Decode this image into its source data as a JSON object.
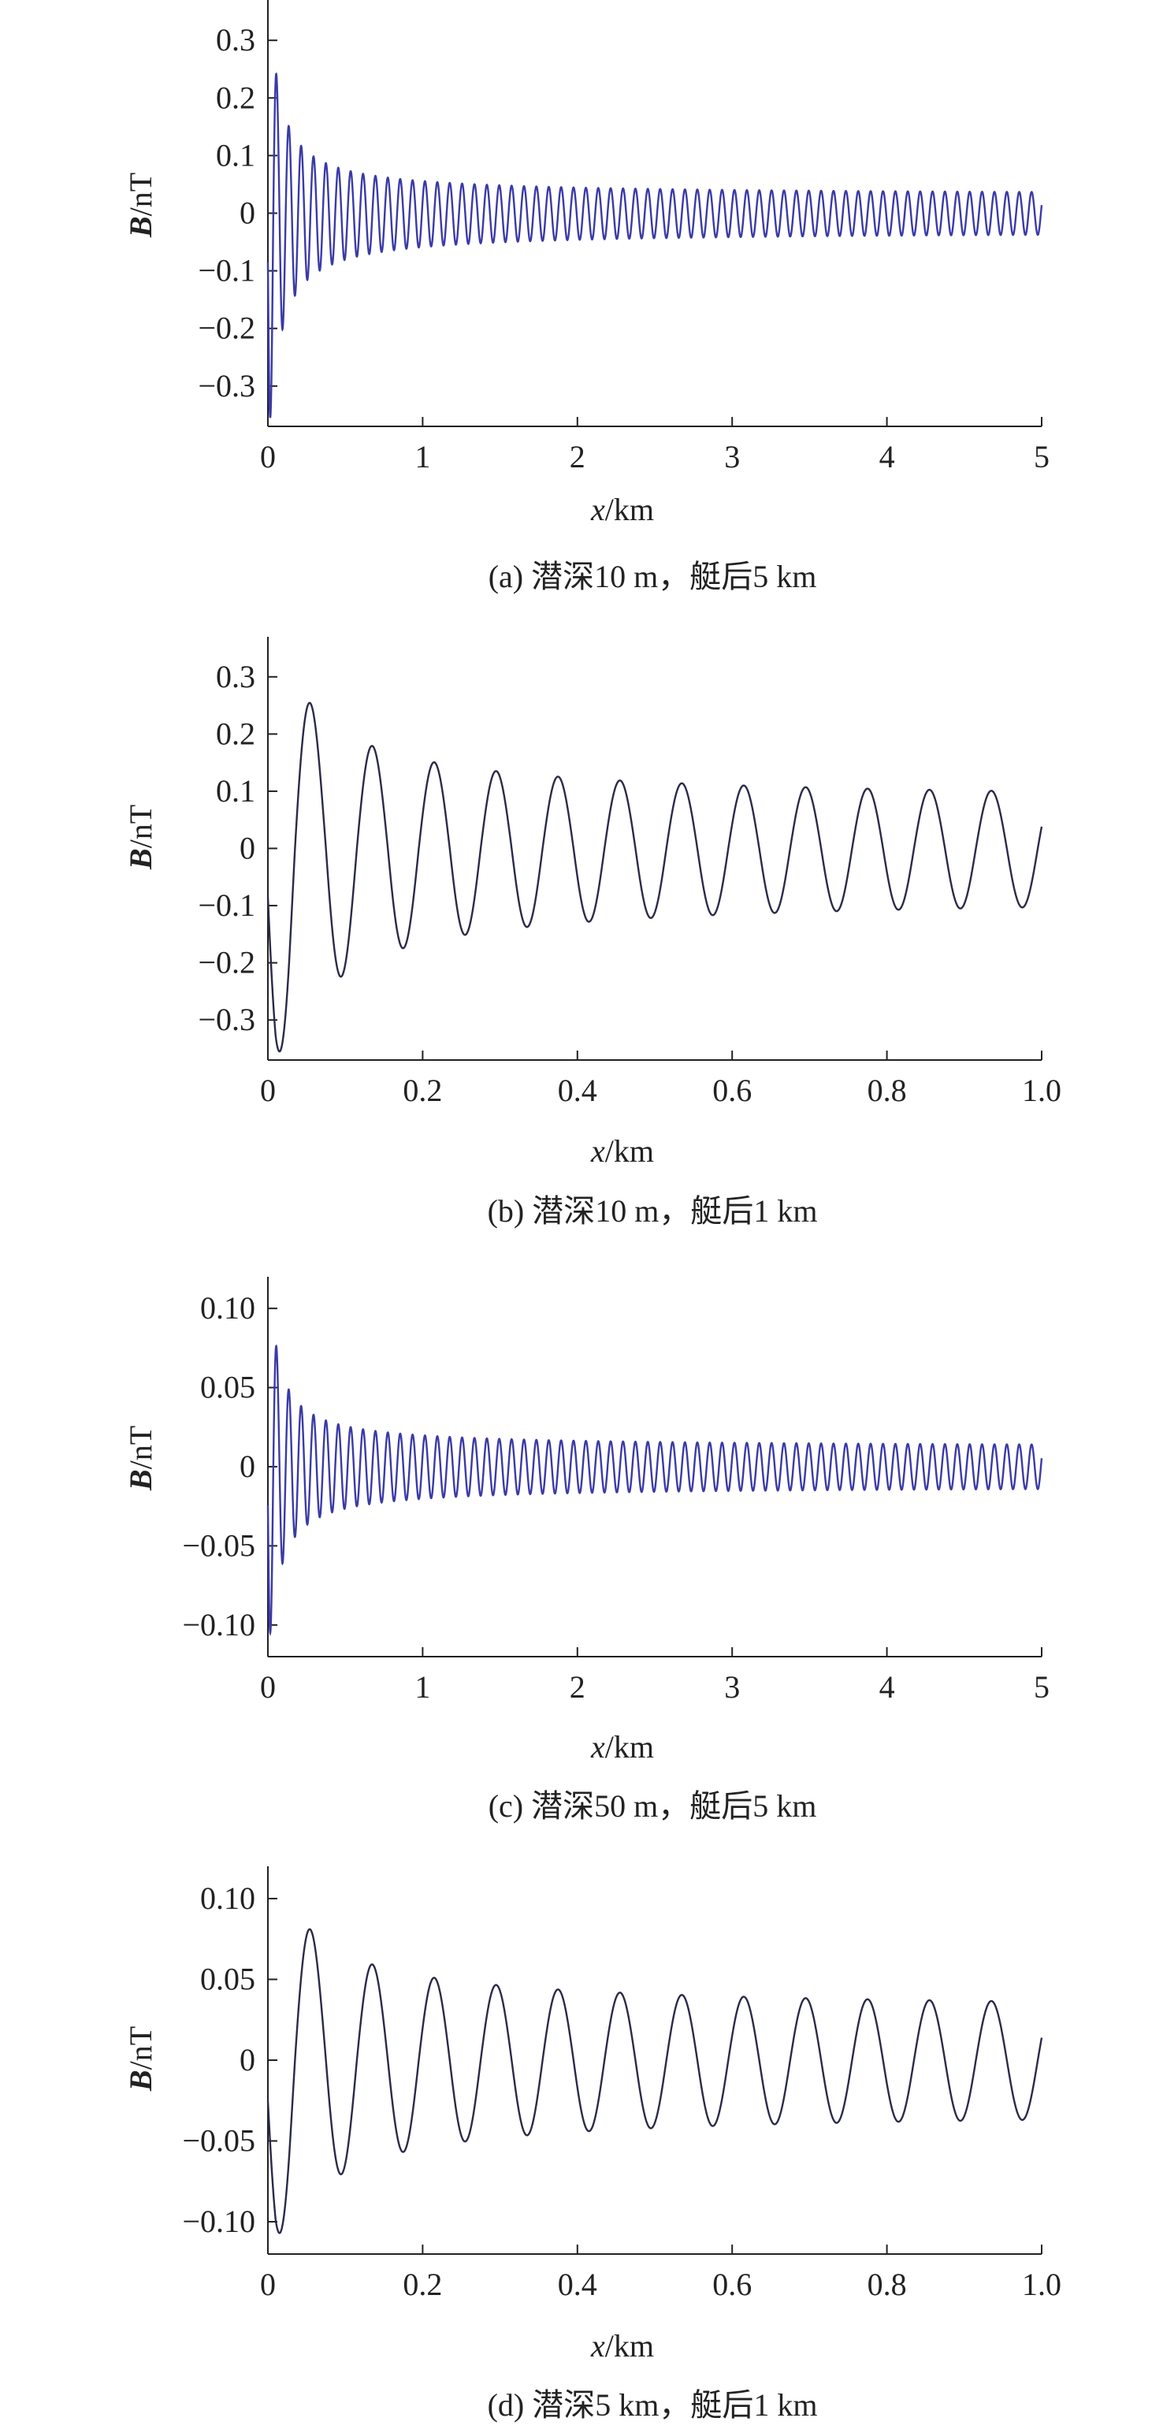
{
  "chart_data": [
    {
      "type": "line",
      "caption": "(a) 潜深10 m，艇后5 km",
      "xlabel": "x/km",
      "xlabel_var": "x",
      "xlabel_unit": "/km",
      "ylabel": "B/nT",
      "ylabel_var": "B",
      "ylabel_unit": "/nT",
      "xlim": [
        0,
        5
      ],
      "ylim": [
        -0.37,
        0.37
      ],
      "xticks": [
        0,
        1,
        2,
        3,
        4,
        5
      ],
      "xtick_labels": [
        "0",
        "1",
        "2",
        "3",
        "4",
        "5"
      ],
      "yticks": [
        0.3,
        0.2,
        0.1,
        0,
        -0.1,
        -0.2,
        -0.3
      ],
      "ytick_labels": [
        "0.3",
        "0.2",
        "0.1",
        "0",
        "−0.1",
        "−0.2",
        "−0.3"
      ],
      "grid": false,
      "signal": {
        "period_km": 0.08,
        "phase_offset_km": -0.005,
        "offset": 0.0,
        "peak_max": 0.32,
        "trough_min": -0.355,
        "amp_far": 0.03,
        "end_value": -0.03
      },
      "colors": {
        "line": "#3a3aa8",
        "axis": "#222222"
      }
    },
    {
      "type": "line",
      "caption": "(b) 潜深10 m，艇后1 km",
      "xlabel": "x/km",
      "xlabel_var": "x",
      "xlabel_unit": "/km",
      "ylabel": "B/nT",
      "ylabel_var": "B",
      "ylabel_unit": "/nT",
      "xlim": [
        0,
        1.0
      ],
      "ylim": [
        -0.37,
        0.37
      ],
      "xticks": [
        0,
        0.2,
        0.4,
        0.6,
        0.8,
        1.0
      ],
      "xtick_labels": [
        "0",
        "0.2",
        "0.4",
        "0.6",
        "0.8",
        "1.0"
      ],
      "yticks": [
        0.3,
        0.2,
        0.1,
        0,
        -0.1,
        -0.2,
        -0.3
      ],
      "ytick_labels": [
        "0.3",
        "0.2",
        "0.1",
        "0",
        "−0.1",
        "−0.2",
        "−0.3"
      ],
      "grid": false,
      "signal": {
        "period_km": 0.08,
        "phase_offset_km": -0.005,
        "offset": 0.0,
        "peak_max": 0.32,
        "trough_min": -0.355,
        "amp_far": 0.078,
        "end_value": 0.0
      },
      "colors": {
        "line": "#2a2a4a",
        "axis": "#222222"
      }
    },
    {
      "type": "line",
      "caption": "(c) 潜深50 m，艇后5 km",
      "xlabel": "x/km",
      "xlabel_var": "x",
      "xlabel_unit": "/km",
      "ylabel": "B/nT",
      "ylabel_var": "B",
      "ylabel_unit": "/nT",
      "xlim": [
        0,
        5
      ],
      "ylim": [
        -0.12,
        0.12
      ],
      "xticks": [
        0,
        1,
        2,
        3,
        4,
        5
      ],
      "xtick_labels": [
        "0",
        "1",
        "2",
        "3",
        "4",
        "5"
      ],
      "yticks": [
        0.1,
        0.05,
        0,
        -0.05,
        -0.1
      ],
      "ytick_labels": [
        "0.10",
        "0.05",
        "0",
        "−0.05",
        "−0.10"
      ],
      "grid": false,
      "signal": {
        "period_km": 0.08,
        "phase_offset_km": -0.005,
        "offset": 0.0,
        "peak_max": 0.1,
        "trough_min": -0.105,
        "amp_far": 0.012,
        "end_value": -0.01
      },
      "colors": {
        "line": "#3a3aa8",
        "axis": "#222222"
      }
    },
    {
      "type": "line",
      "caption": "(d) 潜深5 km，艇后1 km",
      "xlabel": "x/km",
      "xlabel_var": "x",
      "xlabel_unit": "/km",
      "ylabel": "B/nT",
      "ylabel_var": "B",
      "ylabel_unit": "/nT",
      "xlim": [
        0,
        1.0
      ],
      "ylim": [
        -0.12,
        0.12
      ],
      "xticks": [
        0,
        0.2,
        0.4,
        0.6,
        0.8,
        1.0
      ],
      "xtick_labels": [
        "0",
        "0.2",
        "0.4",
        "0.6",
        "0.8",
        "1.0"
      ],
      "yticks": [
        0.1,
        0.05,
        0,
        -0.05,
        -0.1
      ],
      "ytick_labels": [
        "0.10",
        "0.05",
        "0",
        "−0.05",
        "−0.10"
      ],
      "grid": false,
      "signal": {
        "period_km": 0.08,
        "phase_offset_km": -0.005,
        "offset": 0.0,
        "peak_max": 0.1,
        "trough_min": -0.107,
        "amp_far": 0.03,
        "end_value": 0.003
      },
      "colors": {
        "line": "#2a2a4a",
        "axis": "#222222"
      }
    }
  ]
}
